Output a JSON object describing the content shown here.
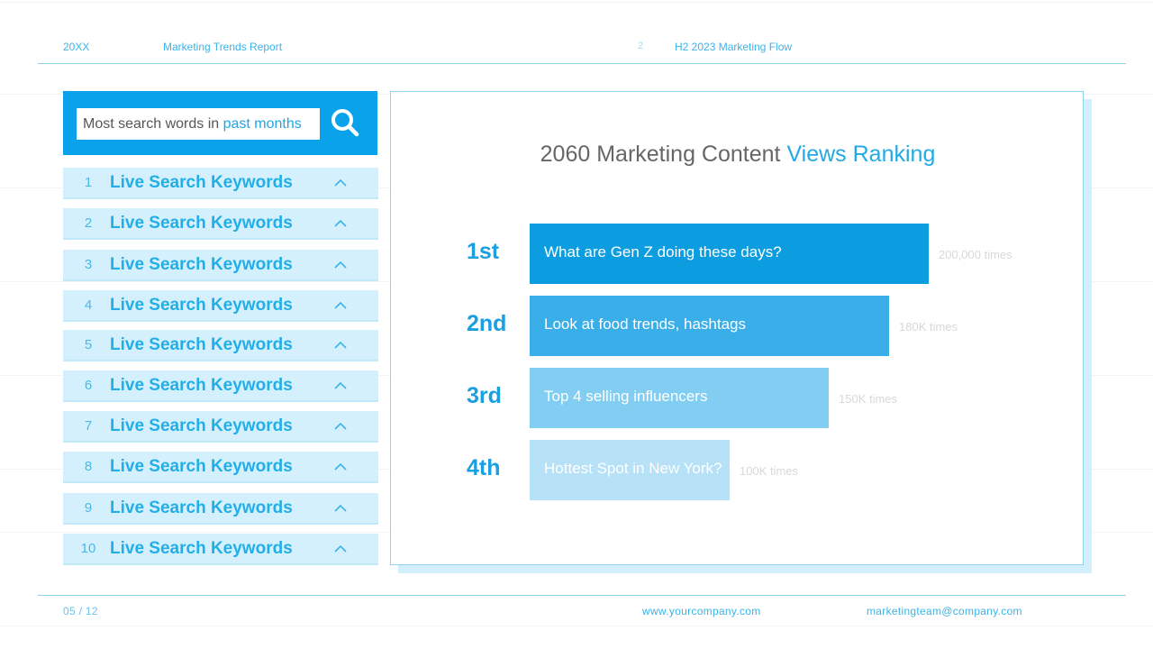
{
  "header": {
    "year": "20XX",
    "report_title": "Marketing Trends Report",
    "page_marker": "2",
    "section": "H2 2023 Marketing Flow"
  },
  "search": {
    "text_plain": "Most search words in ",
    "text_highlight": "past months",
    "icon": "search-icon"
  },
  "keywords": [
    {
      "num": "1",
      "label": "Live Search Keywords"
    },
    {
      "num": "2",
      "label": "Live Search Keywords"
    },
    {
      "num": "3",
      "label": "Live Search Keywords"
    },
    {
      "num": "4",
      "label": "Live Search Keywords"
    },
    {
      "num": "5",
      "label": "Live Search Keywords"
    },
    {
      "num": "6",
      "label": "Live Search Keywords"
    },
    {
      "num": "7",
      "label": "Live Search Keywords"
    },
    {
      "num": "8",
      "label": "Live Search Keywords"
    },
    {
      "num": "9",
      "label": "Live Search Keywords"
    },
    {
      "num": "10",
      "label": "Live Search Keywords"
    }
  ],
  "card": {
    "title_plain": "2060 Marketing Content ",
    "title_highlight": "Views Ranking"
  },
  "chart_data": {
    "type": "bar",
    "orientation": "horizontal",
    "title": "2060 Marketing Content Views Ranking",
    "categories": [
      "What are Gen Z doing these days?",
      "Look at food trends, hashtags",
      "Top 4 selling influencers",
      "Hottest Spot in New York?"
    ],
    "ranks": [
      "1st",
      "2nd",
      "3rd",
      "4th"
    ],
    "values": [
      200000,
      180000,
      150000,
      100000
    ],
    "value_labels": [
      "200,000 times",
      "180K times",
      "150K times",
      "100K times"
    ],
    "colors": [
      "#0c9de0",
      "#3aaee8",
      "#82cdf2",
      "#b6e1f7"
    ]
  },
  "footer": {
    "page": "05 / 12",
    "website": "www.yourcompany.com",
    "email": "marketingteam@company.com"
  }
}
